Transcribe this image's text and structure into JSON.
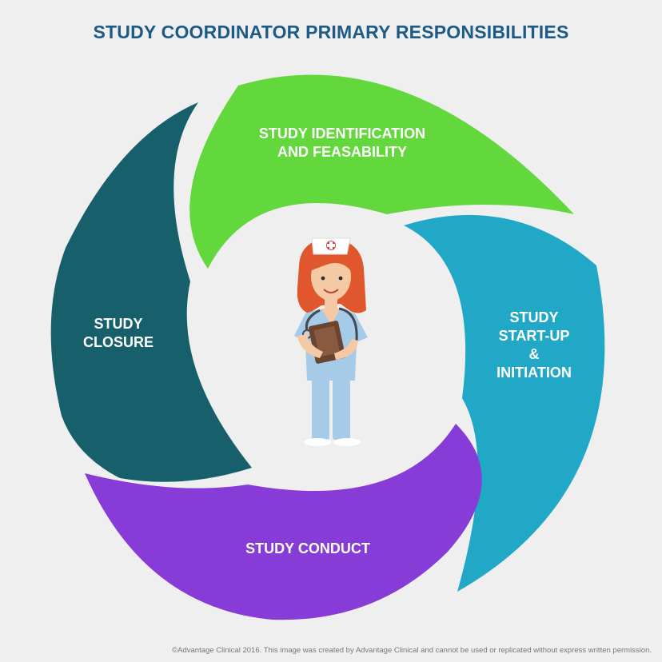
{
  "title": "STUDY COORDINATOR PRIMARY RESPONSIBILITIES",
  "segments": {
    "identification": {
      "label": "STUDY IDENTIFICATION\nAND FEASABILITY",
      "color": "#63d83d"
    },
    "startup": {
      "label": "STUDY\nSTART-UP\n&\nINITIATION",
      "color": "#22a8c7"
    },
    "conduct": {
      "label": "STUDY CONDUCT",
      "color": "#873cd8"
    },
    "closure": {
      "label": "STUDY\nCLOSURE",
      "color": "#17606b"
    }
  },
  "center_figure": "nurse-illustration",
  "title_color": "#1d5b86",
  "background_color": "#efefef",
  "copyright": "©Advantage Clinical 2016. This image was created by Advantage Clinical and cannot be used or replicated without express written permission."
}
